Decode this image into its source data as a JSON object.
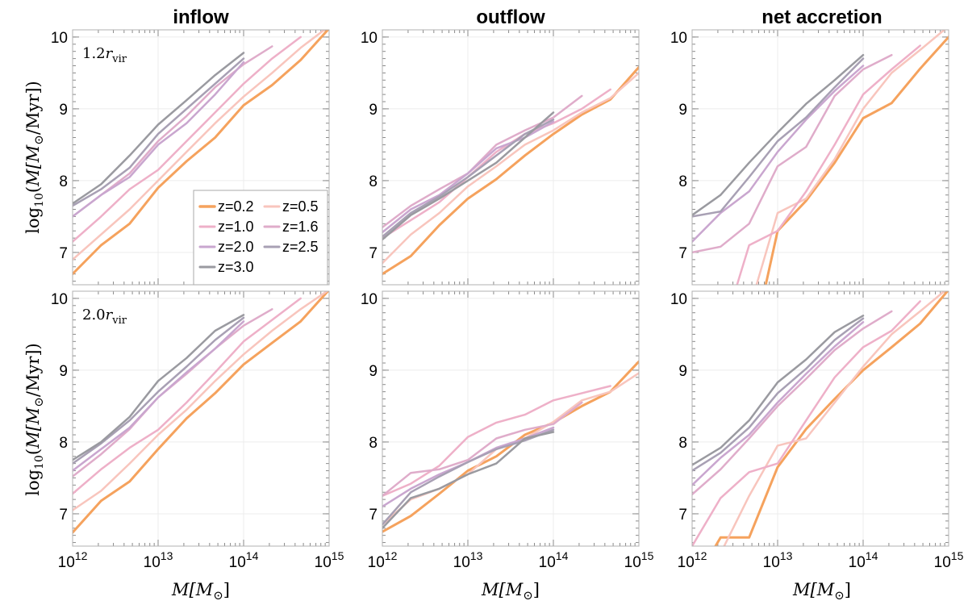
{
  "figure": {
    "columns": [
      "inflow",
      "outflow",
      "net accretion"
    ],
    "row_labels": [
      "1.2r_vir",
      "2.0r_vir"
    ],
    "row_label_parts": [
      {
        "coef": "1.2",
        "sym": "r",
        "sub": "vir"
      },
      {
        "coef": "2.0",
        "sym": "r",
        "sub": "vir"
      }
    ],
    "ylabel": {
      "text": "log10(Ṁ[M⊙/Myr])",
      "pre": "log",
      "pre_sub": "10",
      "open": "(",
      "var": "M",
      "bracket": "[M",
      "sun": "⊙",
      "unit": "/Myr])"
    },
    "xlabel": {
      "text": "M[M⊙]",
      "var": "M",
      "bracket": "[M",
      "sun": "⊙",
      "close": "]"
    },
    "x_tick_labels": [
      {
        "base": "10",
        "exp": "12"
      },
      {
        "base": "10",
        "exp": "13"
      },
      {
        "base": "10",
        "exp": "14"
      },
      {
        "base": "10",
        "exp": "15"
      }
    ],
    "y_tick_labels": [
      "7",
      "8",
      "9",
      "10"
    ],
    "legend_placement": "lower-right of top-left panel"
  },
  "chart_data": {
    "type": "line",
    "xscale": "log",
    "xlim": [
      1000000000000.0,
      1000000000000000.0
    ],
    "ylim": [
      6.55,
      10.1
    ],
    "x_ticks": [
      1000000000000.0,
      10000000000000.0,
      100000000000000.0,
      1000000000000000.0
    ],
    "y_ticks": [
      7,
      8,
      9,
      10
    ],
    "grid": true,
    "series_styles": [
      {
        "name": "z=0.2",
        "color": "#f5a25d",
        "width": 3.0
      },
      {
        "name": "z=0.5",
        "color": "#f8c5bd",
        "width": 2.5
      },
      {
        "name": "z=1.0",
        "color": "#eeb0c8",
        "width": 2.5
      },
      {
        "name": "z=1.6",
        "color": "#dfacca",
        "width": 2.5
      },
      {
        "name": "z=2.0",
        "color": "#c9a6cf",
        "width": 2.5
      },
      {
        "name": "z=2.5",
        "color": "#a8a0b4",
        "width": 2.5
      },
      {
        "name": "z=3.0",
        "color": "#9a9aa0",
        "width": 2.5
      }
    ],
    "x": [
      1000000000000.0,
      2154000000000.0,
      4642000000000.0,
      10000000000000.0,
      21540000000000.0,
      46420000000000.0,
      100000000000000.0,
      215400000000000.0,
      464200000000000.0,
      1000000000000000.0
    ],
    "panels": [
      {
        "column": "inflow",
        "row": "1.2r_vir",
        "series": [
          {
            "name": "z=0.2",
            "values": [
              6.7,
              7.1,
              7.4,
              7.9,
              8.27,
              8.6,
              9.05,
              9.33,
              9.68,
              10.12
            ]
          },
          {
            "name": "z=0.5",
            "values": [
              6.9,
              7.25,
              7.6,
              8.0,
              8.4,
              8.8,
              9.17,
              9.5,
              9.85,
              10.15
            ]
          },
          {
            "name": "z=1.0",
            "values": [
              7.15,
              7.5,
              7.88,
              8.15,
              8.55,
              8.95,
              9.35,
              9.7,
              10.0
            ]
          },
          {
            "name": "z=1.6",
            "values": [
              7.5,
              7.8,
              8.1,
              8.55,
              8.9,
              9.3,
              9.62,
              9.87
            ]
          },
          {
            "name": "z=2.0",
            "values": [
              7.5,
              7.8,
              8.05,
              8.5,
              8.8,
              9.2,
              9.65
            ]
          },
          {
            "name": "z=2.5",
            "values": [
              7.65,
              7.88,
              8.18,
              8.65,
              9.0,
              9.35,
              9.7
            ]
          },
          {
            "name": "z=3.0",
            "values": [
              7.68,
              7.95,
              8.35,
              8.78,
              9.12,
              9.47,
              9.78
            ]
          }
        ]
      },
      {
        "column": "outflow",
        "row": "1.2r_vir",
        "series": [
          {
            "name": "z=0.2",
            "values": [
              6.7,
              6.95,
              7.38,
              7.75,
              8.02,
              8.35,
              8.65,
              8.92,
              9.13,
              9.58
            ]
          },
          {
            "name": "z=0.5",
            "values": [
              6.85,
              7.25,
              7.55,
              7.92,
              8.2,
              8.5,
              8.7,
              8.95,
              9.15,
              9.5
            ]
          },
          {
            "name": "z=1.0",
            "values": [
              7.2,
              7.45,
              7.7,
              8.05,
              8.4,
              8.65,
              8.8,
              9.0,
              9.27
            ]
          },
          {
            "name": "z=1.6",
            "values": [
              7.35,
              7.65,
              7.88,
              8.1,
              8.5,
              8.7,
              8.88,
              9.18
            ]
          },
          {
            "name": "z=2.0",
            "values": [
              7.28,
              7.6,
              7.8,
              8.1,
              8.45,
              8.6,
              8.82
            ]
          },
          {
            "name": "z=2.5",
            "values": [
              7.22,
              7.55,
              7.78,
              8.05,
              8.35,
              8.65,
              8.85
            ]
          },
          {
            "name": "z=3.0",
            "values": [
              7.18,
              7.52,
              7.75,
              8.0,
              8.25,
              8.6,
              8.95
            ]
          }
        ]
      },
      {
        "column": "net accretion",
        "row": "1.2r_vir",
        "series": [
          {
            "name": "z=0.2",
            "values": [
              null,
              null,
              5.5,
              7.3,
              7.72,
              8.25,
              8.87,
              9.08,
              9.56,
              10.0
            ]
          },
          {
            "name": "z=0.5",
            "values": [
              null,
              null,
              6.2,
              7.55,
              7.75,
              8.3,
              9.0,
              9.5,
              9.82,
              10.15
            ]
          },
          {
            "name": "z=1.0",
            "values": [
              null,
              5.8,
              7.1,
              7.3,
              7.85,
              8.5,
              9.2,
              9.55,
              9.88
            ]
          },
          {
            "name": "z=1.6",
            "values": [
              7.0,
              7.08,
              7.4,
              8.2,
              8.47,
              9.18,
              9.55,
              9.75
            ]
          },
          {
            "name": "z=2.0",
            "values": [
              7.15,
              7.55,
              7.85,
              8.4,
              8.85,
              9.25,
              9.6
            ]
          },
          {
            "name": "z=2.5",
            "values": [
              7.5,
              7.57,
              8.05,
              8.55,
              8.88,
              9.3,
              9.7
            ]
          },
          {
            "name": "z=3.0",
            "values": [
              7.52,
              7.8,
              8.25,
              8.67,
              9.07,
              9.4,
              9.75
            ]
          }
        ]
      },
      {
        "column": "inflow",
        "row": "2.0r_vir",
        "series": [
          {
            "name": "z=0.2",
            "values": [
              6.74,
              7.18,
              7.45,
              7.9,
              8.33,
              8.68,
              9.08,
              9.38,
              9.68,
              10.12
            ]
          },
          {
            "name": "z=0.5",
            "values": [
              7.05,
              7.32,
              7.7,
              8.1,
              8.45,
              8.85,
              9.22,
              9.55,
              9.85,
              10.12
            ]
          },
          {
            "name": "z=1.0",
            "values": [
              7.28,
              7.62,
              7.92,
              8.17,
              8.55,
              8.97,
              9.4,
              9.7,
              10.0
            ]
          },
          {
            "name": "z=1.6",
            "values": [
              7.52,
              7.83,
              8.18,
              8.62,
              8.95,
              9.3,
              9.62,
              9.85
            ]
          },
          {
            "name": "z=2.0",
            "values": [
              7.6,
              7.9,
              8.2,
              8.62,
              8.97,
              9.3,
              9.68
            ]
          },
          {
            "name": "z=2.5",
            "values": [
              7.7,
              7.98,
              8.3,
              8.7,
              9.05,
              9.42,
              9.73
            ]
          },
          {
            "name": "z=3.0",
            "values": [
              7.75,
              8.0,
              8.35,
              8.85,
              9.17,
              9.55,
              9.77
            ]
          }
        ]
      },
      {
        "column": "outflow",
        "row": "2.0r_vir",
        "series": [
          {
            "name": "z=0.2",
            "values": [
              6.75,
              6.97,
              7.28,
              7.6,
              7.8,
              8.1,
              8.27,
              8.5,
              8.7,
              9.12
            ]
          },
          {
            "name": "z=0.5",
            "values": [
              6.85,
              7.2,
              7.35,
              7.55,
              7.9,
              8.05,
              8.28,
              8.58,
              8.7,
              8.96
            ]
          },
          {
            "name": "z=1.0",
            "values": [
              7.25,
              7.42,
              7.67,
              8.07,
              8.27,
              8.38,
              8.58,
              8.68,
              8.78
            ]
          },
          {
            "name": "z=1.6",
            "values": [
              7.25,
              7.57,
              7.62,
              7.75,
              8.05,
              8.17,
              8.25,
              8.55
            ]
          },
          {
            "name": "z=2.0",
            "values": [
              7.1,
              7.35,
              7.55,
              7.72,
              7.92,
              8.05,
              8.2
            ]
          },
          {
            "name": "z=2.5",
            "values": [
              6.85,
              7.3,
              7.52,
              7.72,
              7.9,
              8.02,
              8.17
            ]
          },
          {
            "name": "z=3.0",
            "values": [
              6.8,
              7.22,
              7.35,
              7.55,
              7.7,
              8.05,
              8.14
            ]
          }
        ]
      },
      {
        "column": "net accretion",
        "row": "2.0r_vir",
        "series": [
          {
            "name": "z=0.2",
            "values": [
              6.0,
              6.67,
              6.67,
              7.65,
              8.18,
              8.6,
              9.0,
              9.32,
              9.65,
              10.12
            ]
          },
          {
            "name": "z=0.5",
            "values": [
              6.0,
              6.45,
              7.25,
              7.95,
              8.05,
              8.55,
              9.05,
              9.5,
              9.82,
              10.15
            ]
          },
          {
            "name": "z=1.0",
            "values": [
              6.55,
              7.22,
              7.58,
              7.7,
              8.3,
              8.9,
              9.32,
              9.55,
              9.96
            ]
          },
          {
            "name": "z=1.6",
            "values": [
              7.27,
              7.62,
              8.05,
              8.5,
              8.88,
              9.28,
              9.58,
              9.82
            ]
          },
          {
            "name": "z=2.0",
            "values": [
              7.4,
              7.78,
              8.1,
              8.55,
              8.95,
              9.33,
              9.67
            ]
          },
          {
            "name": "z=2.5",
            "values": [
              7.6,
              7.85,
              8.2,
              8.68,
              9.02,
              9.42,
              9.72
            ]
          },
          {
            "name": "z=3.0",
            "values": [
              7.68,
              7.92,
              8.3,
              8.83,
              9.15,
              9.53,
              9.76
            ]
          }
        ]
      }
    ]
  }
}
